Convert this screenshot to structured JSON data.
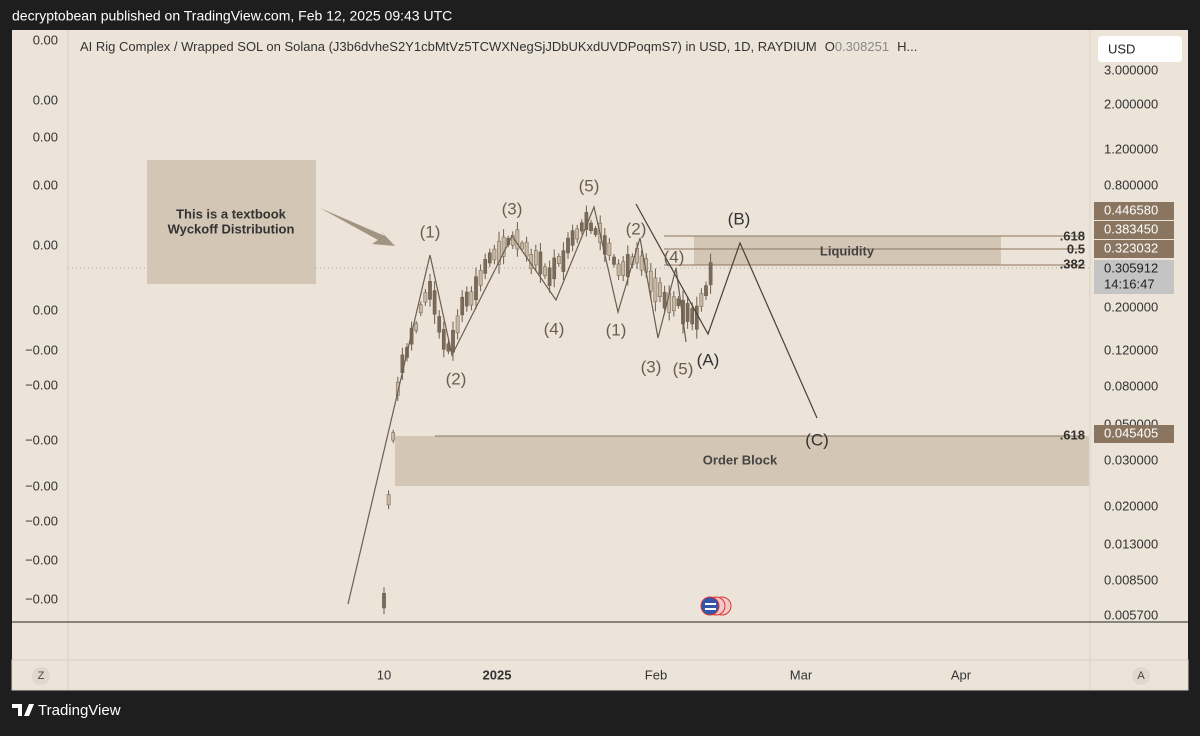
{
  "header": {
    "publisher": "decryptobean published on TradingView.com, Feb 12, 2025 09:43 UTC"
  },
  "chart": {
    "title": "AI Rig Complex / Wrapped SOL on Solana (J3b6dvheS2Y1cbMtVz5TCWXNegSjJDbUKxdUVDPoqmS7) in USD, 1D, RAYDIUM",
    "open_label": "O",
    "open_value": "0.308251",
    "more": "H...",
    "currency": "USD",
    "left_axis": [
      "0.00",
      "0.00",
      "0.00",
      "0.00",
      "0.00",
      "0.00",
      "−0.00",
      "−0.00",
      "−0.00",
      "−0.00",
      "−0.00",
      "−0.00",
      "−0.00"
    ],
    "right_axis": [
      "3.000000",
      "2.000000",
      "1.200000",
      "0.800000",
      "0.200000",
      "0.120000",
      "0.080000",
      "0.050000",
      "0.030000",
      "0.020000",
      "0.013000",
      "0.008500",
      "0.005700"
    ],
    "price_badges": [
      "0.446580",
      "0.383450",
      "0.323032",
      "0.305912",
      "14:16:47",
      "0.045405"
    ],
    "time_axis": [
      "10",
      "2025",
      "Feb",
      "Mar",
      "Apr"
    ],
    "buttons": [
      "Z",
      "A"
    ],
    "note": [
      "This is a textbook",
      "Wyckoff Distribution"
    ],
    "waves": [
      "(1)",
      "(2)",
      "(3)",
      "(4)",
      "(5)",
      "(1)",
      "(2)",
      "(3)",
      "(4)",
      "(5)",
      "(A)",
      "(B)",
      "(C)"
    ],
    "zones": [
      "Liquidity",
      "Order Block"
    ],
    "fib_levels": [
      ".618",
      "0.5",
      ".382",
      ".618"
    ]
  },
  "footer": {
    "brand": "TradingView"
  }
}
